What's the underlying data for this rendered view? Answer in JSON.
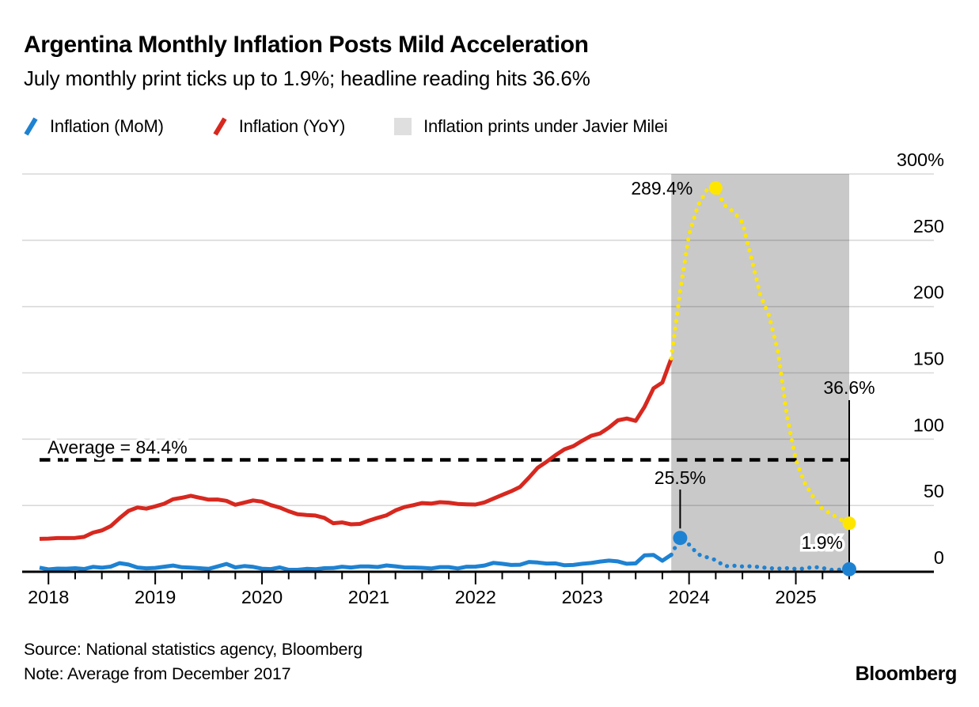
{
  "header": {
    "title": "Argentina Monthly Inflation Posts Mild Acceleration",
    "subtitle": "July monthly print ticks up to 1.9%; headline reading hits 36.6%"
  },
  "legend": {
    "items": [
      {
        "label": "Inflation (MoM)",
        "marker": "slash",
        "color": "#1e82d2"
      },
      {
        "label": "Inflation (YoY)",
        "marker": "slash",
        "color": "#d7281f"
      },
      {
        "label": "Inflation prints under Javier Milei",
        "marker": "square",
        "color": "#dfdfdf"
      }
    ]
  },
  "chart_data": {
    "type": "line",
    "title": "Argentina Monthly Inflation Posts Mild Acceleration",
    "x_start": "2017-12",
    "x_end": "2025-07",
    "xticks": [
      "2018",
      "2019",
      "2020",
      "2021",
      "2022",
      "2023",
      "2024",
      "2025"
    ],
    "ytick_values": [
      0,
      50,
      100,
      150,
      200,
      250,
      300
    ],
    "ytick_labels": [
      "0",
      "50",
      "100",
      "150",
      "200",
      "250",
      "300%"
    ],
    "ylim": [
      0,
      300
    ],
    "grid": "horizontal",
    "legend_position": "top",
    "split_month": "2023-12",
    "split_index": 72,
    "series": [
      {
        "name": "Inflation (MoM)",
        "color": "#1e82d2",
        "dotted_color": "#1e82d2",
        "style_after_split": "dotted",
        "values": [
          3.1,
          1.8,
          2.4,
          2.3,
          2.7,
          2.1,
          3.7,
          3.1,
          3.9,
          6.5,
          5.4,
          3.2,
          2.6,
          2.9,
          3.8,
          4.7,
          3.4,
          3.1,
          2.7,
          2.2,
          4.0,
          5.9,
          3.3,
          4.3,
          3.7,
          2.3,
          2.0,
          3.3,
          1.5,
          1.5,
          2.2,
          1.9,
          2.7,
          2.8,
          3.8,
          3.2,
          4.0,
          4.0,
          3.6,
          4.8,
          4.1,
          3.3,
          3.2,
          3.0,
          2.5,
          3.5,
          3.5,
          2.5,
          3.8,
          3.9,
          4.7,
          6.7,
          6.0,
          5.1,
          5.3,
          7.4,
          7.0,
          6.2,
          6.3,
          4.9,
          5.1,
          6.0,
          6.6,
          7.7,
          8.4,
          7.8,
          6.0,
          6.3,
          12.4,
          12.7,
          8.3,
          12.8,
          25.5,
          20.6,
          13.2,
          11.0,
          8.8,
          4.2,
          4.6,
          4.0,
          4.2,
          3.5,
          2.7,
          2.4,
          2.7,
          2.2,
          2.4,
          3.7,
          2.8,
          1.5,
          1.6,
          1.9
        ]
      },
      {
        "name": "Inflation (YoY)",
        "color": "#d7281f",
        "dotted_color": "#ffe600",
        "style_after_split": "dotted",
        "values": [
          24.8,
          25.0,
          25.4,
          25.4,
          25.5,
          26.3,
          29.5,
          31.2,
          34.4,
          40.5,
          45.9,
          48.5,
          47.6,
          49.3,
          51.3,
          54.7,
          55.8,
          57.3,
          55.8,
          54.4,
          54.5,
          53.5,
          50.5,
          52.1,
          53.8,
          52.9,
          50.3,
          48.4,
          45.6,
          43.4,
          42.8,
          42.4,
          40.7,
          36.6,
          37.2,
          35.8,
          36.1,
          38.5,
          40.7,
          42.6,
          46.3,
          48.8,
          50.2,
          51.8,
          51.4,
          52.5,
          52.1,
          51.2,
          50.9,
          50.7,
          52.3,
          55.1,
          58.0,
          60.7,
          64.0,
          71.0,
          78.5,
          83.0,
          88.0,
          92.4,
          94.8,
          98.8,
          102.5,
          104.3,
          108.8,
          114.2,
          115.6,
          113.8,
          124.4,
          138.3,
          142.7,
          160.9,
          211.4,
          254.2,
          276.2,
          287.9,
          289.4,
          276.4,
          271.5,
          263.4,
          236.7,
          209.0,
          193.0,
          166.0,
          117.8,
          84.5,
          66.9,
          55.9,
          47.3,
          43.5,
          39.4,
          36.6
        ]
      }
    ],
    "milei_region": {
      "label": "Inflation prints under Javier Milei",
      "color": "#c9c9c9",
      "start": "2023-12",
      "end": "2025-07"
    },
    "average": {
      "value": 84.4,
      "label": "Average = 84.4%"
    },
    "annotations": [
      {
        "label": "289.4%",
        "month": "2024-04",
        "index": 76,
        "value": 289.4,
        "series": 1,
        "dot": true,
        "mode": "left-of-point"
      },
      {
        "label": "25.5%",
        "month": "2023-12",
        "index": 72,
        "value": 25.5,
        "series": 0,
        "dot": true,
        "mode": "stem-above"
      },
      {
        "label": "36.6%",
        "month": "2025-07",
        "index": 91,
        "value": 36.6,
        "series": 1,
        "dot": true,
        "mode": "stem-top"
      },
      {
        "label": "1.9%",
        "month": "2025-07",
        "index": 91,
        "value": 1.9,
        "series": 0,
        "dot": true,
        "mode": "left-halo"
      }
    ]
  },
  "footer": {
    "source": "Source: National statistics agency, Bloomberg",
    "note": "Note: Average from December 2017",
    "brand": "Bloomberg"
  }
}
